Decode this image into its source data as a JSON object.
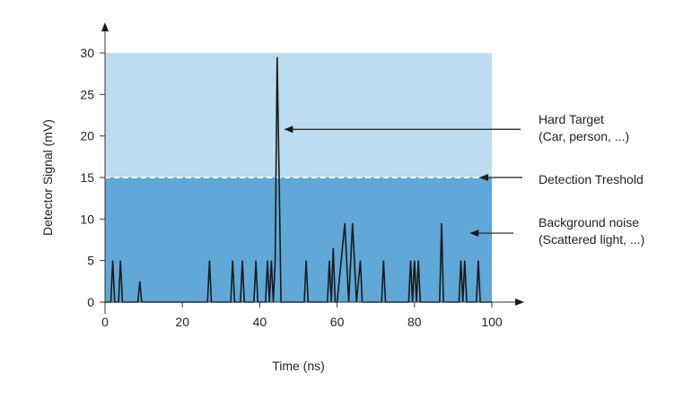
{
  "chart_data": {
    "type": "line",
    "title": "",
    "xlabel": "Time (ns)",
    "ylabel": "Detector Signal (mV)",
    "xlim": [
      0,
      100
    ],
    "ylim": [
      0,
      30
    ],
    "xticks": [
      0,
      20,
      40,
      60,
      80,
      100
    ],
    "yticks": [
      0,
      5,
      10,
      15,
      20,
      25,
      30
    ],
    "grid": false,
    "series": [
      {
        "x": [
          0,
          1.5,
          2,
          2.5,
          3.5,
          4,
          4.5,
          8.5,
          9,
          9.5,
          26.5,
          27,
          27.5,
          32.5,
          33,
          33.5,
          35,
          35.5,
          36,
          38.5,
          39,
          39.5,
          41.5,
          42,
          42.5,
          43,
          43.5,
          44,
          44.5,
          45,
          45.5,
          51.5,
          52,
          52.5,
          57.5,
          58,
          58.5,
          59,
          59.5,
          60,
          62,
          63,
          64,
          65,
          66,
          66.5,
          67,
          71.5,
          72,
          72.5,
          78.5,
          79,
          79.5,
          80,
          80.5,
          81,
          81.5,
          82,
          86.5,
          87,
          87.5,
          91.5,
          92,
          92.5,
          93,
          93.5,
          96,
          96.5,
          97,
          100
        ],
        "values": [
          0,
          0,
          5,
          0,
          0,
          5,
          0,
          0,
          2.5,
          0,
          0,
          5,
          0,
          0,
          5,
          0,
          0,
          5,
          0,
          0,
          5,
          0,
          0,
          5,
          0,
          5,
          0,
          5,
          29.5,
          15,
          0,
          0,
          5,
          0,
          0,
          5,
          0,
          6.5,
          0,
          0,
          9.5,
          0,
          9.5,
          0,
          5,
          0,
          0,
          0,
          5,
          0,
          0,
          5,
          0,
          5,
          0,
          5,
          0,
          0,
          0,
          9.5,
          0,
          0,
          5,
          0,
          5,
          0,
          0,
          5,
          0,
          0
        ],
        "color": "#1a1a1a"
      }
    ],
    "bands": [
      {
        "from": 0,
        "to": 15,
        "color": "#5fa8d8"
      },
      {
        "from": 15,
        "to": 30,
        "color": "#bcdcef"
      }
    ],
    "threshold": {
      "y": 15,
      "style": "dashed",
      "color": "#ffffff"
    },
    "annotations": [
      {
        "lines": [
          "Hard Target",
          "(Car, person, ...)"
        ],
        "arrow_to": [
          46.5,
          20.8
        ]
      },
      {
        "lines": [
          "Detection Treshold"
        ],
        "arrow_to": [
          97,
          15
        ]
      },
      {
        "lines": [
          "Background noise",
          "(Scattered light, ...)"
        ],
        "arrow_to": [
          94.5,
          8.3
        ]
      }
    ]
  }
}
